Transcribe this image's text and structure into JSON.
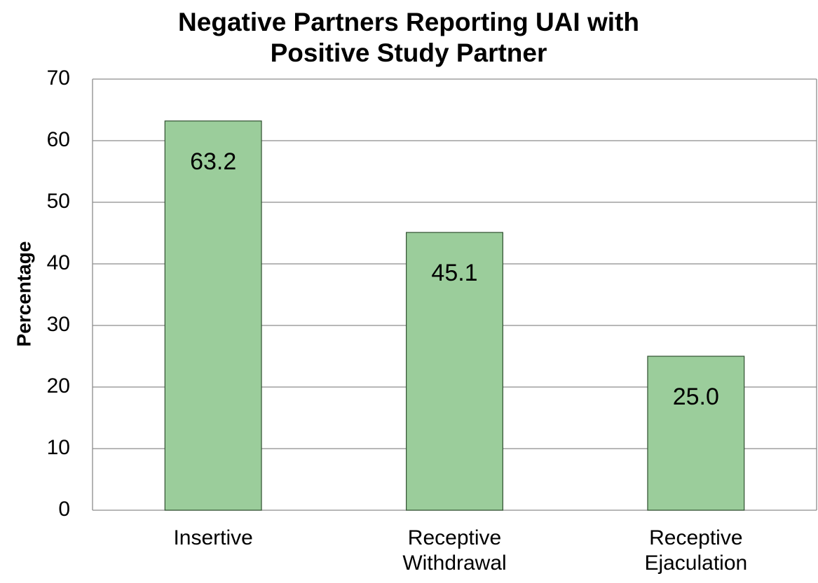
{
  "chart_data": {
    "type": "bar",
    "title": "Negative Partners Reporting UAI with Positive Study Partner",
    "y_label": "Percentage",
    "categories": [
      "Insertive",
      "Receptive Withdrawal",
      "Receptive Ejaculation"
    ],
    "values": [
      63.2,
      45.1,
      25.0
    ],
    "value_labels": [
      "63.2",
      "45.1",
      "25.0"
    ],
    "color": "#9bcd9b",
    "ylim": [
      0,
      70
    ],
    "yticks": [
      0,
      10,
      20,
      30,
      40,
      50,
      60,
      70
    ],
    "grid": true
  }
}
